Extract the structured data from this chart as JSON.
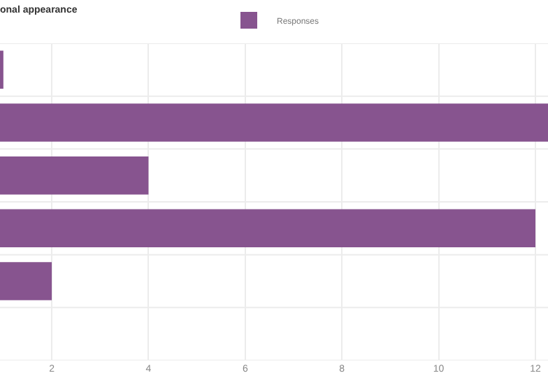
{
  "chart_data": {
    "type": "bar",
    "orientation": "horizontal",
    "title": "onal appearance",
    "categories": [
      null,
      null,
      null,
      null,
      null,
      null
    ],
    "series": [
      {
        "name": "Responses",
        "color": "#87548f",
        "values": [
          1,
          12.26,
          4,
          12,
          2,
          null
        ]
      }
    ],
    "xlim": [
      0.93,
      12.26
    ],
    "xticks": [
      2,
      4,
      6,
      8,
      10,
      12
    ],
    "tick_labels": "x",
    "grid": true,
    "legend": "top"
  }
}
